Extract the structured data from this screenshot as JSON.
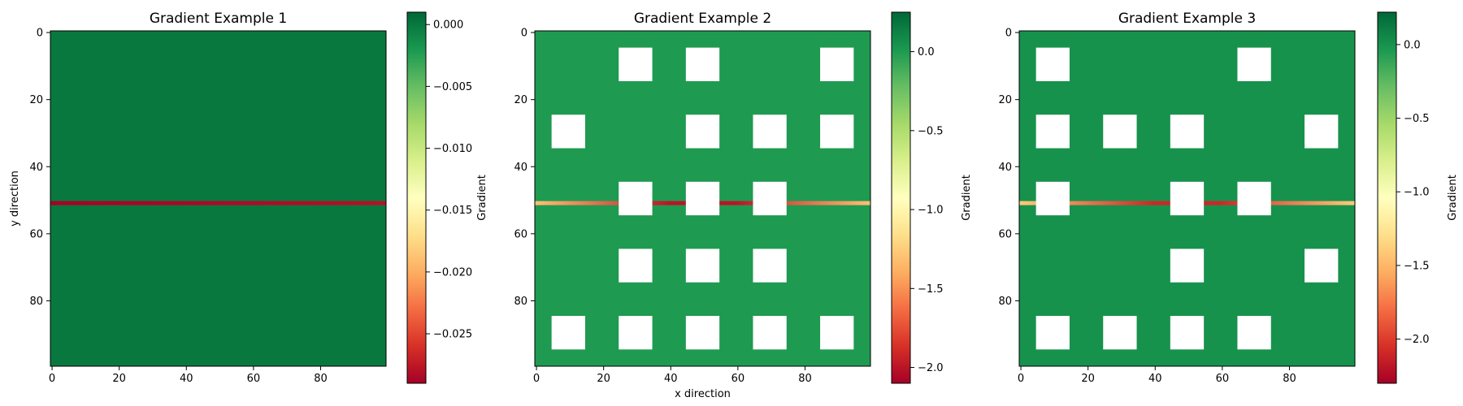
{
  "chart_data": [
    {
      "type": "heatmap",
      "title": "Gradient Example 1",
      "xlabel": "",
      "ylabel": "y direction",
      "colorbar_label": "Gradient",
      "colormap": "RdYlGn",
      "grid_size": [
        100,
        100
      ],
      "xlim": [
        0,
        99
      ],
      "ylim": [
        99,
        0
      ],
      "x_ticks": [
        0,
        20,
        40,
        60,
        80
      ],
      "y_ticks": [
        0,
        20,
        40,
        60,
        80
      ],
      "x_tick_labels": [
        "0",
        "20",
        "40",
        "60",
        "80"
      ],
      "y_tick_labels": [
        "0",
        "20",
        "40",
        "60",
        "80"
      ],
      "color_range": [
        -0.029,
        0.001
      ],
      "colorbar_ticks": [
        0.0,
        -0.005,
        -0.01,
        -0.015,
        -0.02,
        -0.025
      ],
      "colorbar_tick_labels": [
        "0.000",
        "−0.005",
        "−0.010",
        "−0.015",
        "−0.020",
        "−0.025"
      ],
      "base_value": 0.0,
      "horizontal_band": {
        "row": 51,
        "value_min": -0.029,
        "value_max": -0.028
      },
      "blocked_squares": []
    },
    {
      "type": "heatmap",
      "title": "Gradient Example 2",
      "xlabel": "x direction",
      "ylabel": "",
      "colorbar_label": "Gradient",
      "colormap": "RdYlGn",
      "grid_size": [
        100,
        100
      ],
      "xlim": [
        0,
        99
      ],
      "ylim": [
        99,
        0
      ],
      "x_ticks": [
        0,
        20,
        40,
        60,
        80
      ],
      "y_ticks": [
        0,
        20,
        40,
        60,
        80
      ],
      "x_tick_labels": [
        "0",
        "20",
        "40",
        "60",
        "80"
      ],
      "y_tick_labels": [
        "0",
        "20",
        "40",
        "60",
        "80"
      ],
      "color_range": [
        -2.1,
        0.25
      ],
      "colorbar_ticks": [
        0.0,
        -0.5,
        -1.0,
        -1.5,
        -2.0
      ],
      "colorbar_tick_labels": [
        "0.0",
        "−0.5",
        "−1.0",
        "−1.5",
        "−2.0"
      ],
      "base_value": 0.0,
      "horizontal_band": {
        "row": 51,
        "value_min": -2.0,
        "value_max": -1.3
      },
      "blocked_squares": [
        [
          25,
          5
        ],
        [
          45,
          5
        ],
        [
          85,
          5
        ],
        [
          5,
          25
        ],
        [
          45,
          25
        ],
        [
          65,
          25
        ],
        [
          85,
          25
        ],
        [
          25,
          45
        ],
        [
          45,
          45
        ],
        [
          65,
          45
        ],
        [
          25,
          65
        ],
        [
          45,
          65
        ],
        [
          65,
          65
        ],
        [
          5,
          85
        ],
        [
          25,
          85
        ],
        [
          45,
          85
        ],
        [
          65,
          85
        ],
        [
          85,
          85
        ]
      ],
      "square_size": 10
    },
    {
      "type": "heatmap",
      "title": "Gradient Example 3",
      "xlabel": "",
      "ylabel": "",
      "colorbar_label": "Gradient",
      "colormap": "RdYlGn",
      "grid_size": [
        100,
        100
      ],
      "xlim": [
        0,
        99
      ],
      "ylim": [
        99,
        0
      ],
      "x_ticks": [
        0,
        20,
        40,
        60,
        80
      ],
      "y_ticks": [
        0,
        20,
        40,
        60,
        80
      ],
      "x_tick_labels": [
        "0",
        "20",
        "40",
        "60",
        "80"
      ],
      "y_tick_labels": [
        "0",
        "20",
        "40",
        "60",
        "80"
      ],
      "color_range": [
        -2.3,
        0.22
      ],
      "colorbar_ticks": [
        0.0,
        -0.5,
        -1.0,
        -1.5,
        -2.0
      ],
      "colorbar_tick_labels": [
        "0.0",
        "−0.5",
        "−1.0",
        "−1.5",
        "−2.0"
      ],
      "base_value": 0.0,
      "horizontal_band": {
        "row": 51,
        "value_min": -2.1,
        "value_max": -1.4
      },
      "blocked_squares": [
        [
          5,
          5
        ],
        [
          65,
          5
        ],
        [
          5,
          25
        ],
        [
          25,
          25
        ],
        [
          45,
          25
        ],
        [
          85,
          25
        ],
        [
          5,
          45
        ],
        [
          45,
          45
        ],
        [
          65,
          45
        ],
        [
          45,
          65
        ],
        [
          85,
          65
        ],
        [
          5,
          85
        ],
        [
          25,
          85
        ],
        [
          45,
          85
        ],
        [
          65,
          85
        ]
      ],
      "square_size": 10
    }
  ]
}
